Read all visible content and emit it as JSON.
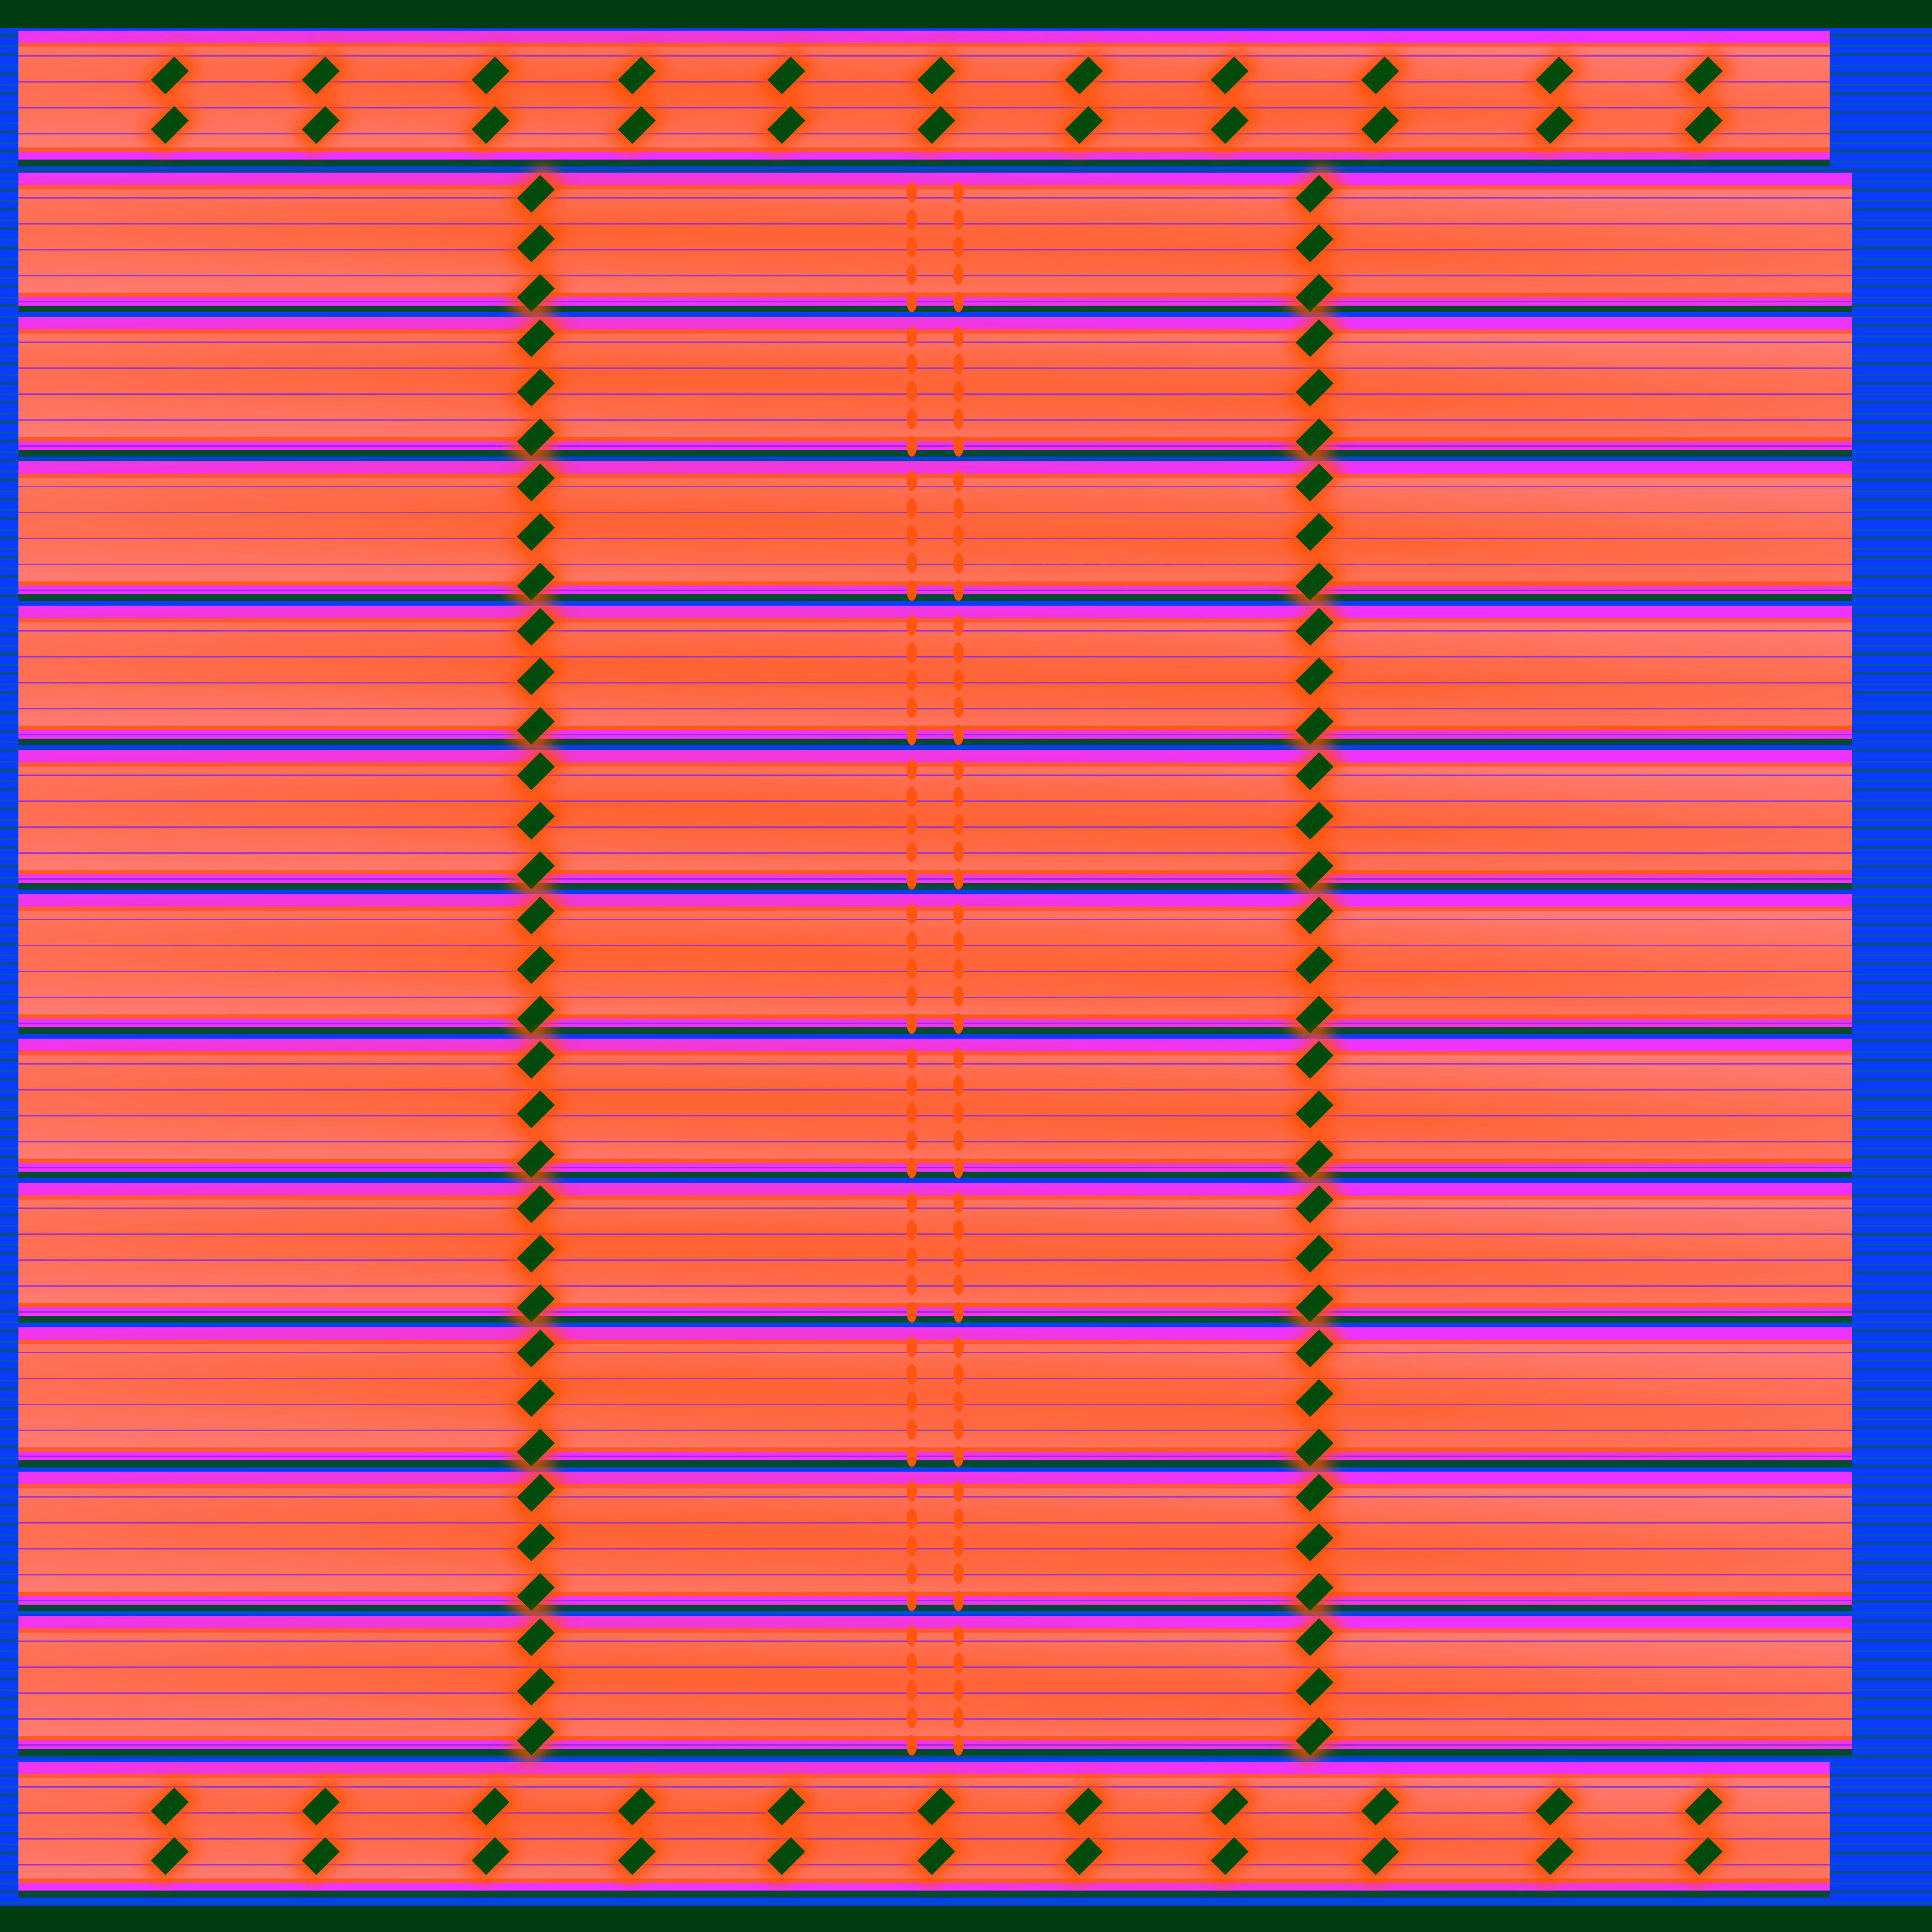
{
  "texture": {
    "colors": {
      "background_blue": "#0a3cff",
      "dark_green": "#004a0c",
      "magenta": "#ee33ff",
      "salmon": "#ff7a72",
      "orange": "#ff5510"
    },
    "motif": "green-diamond"
  }
}
